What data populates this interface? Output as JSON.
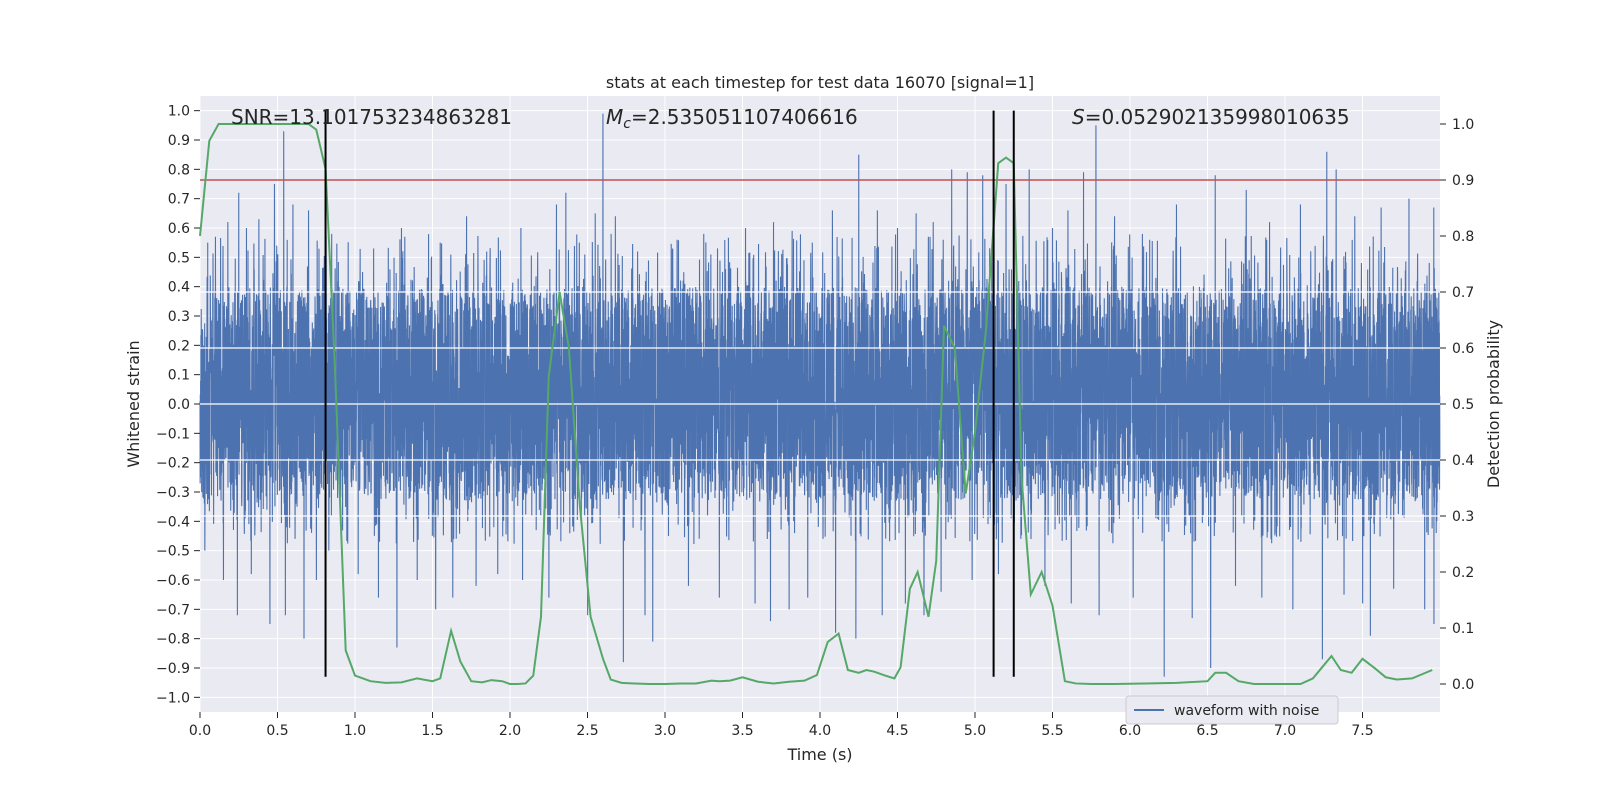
{
  "chart_data": {
    "type": "line",
    "title": "stats at each timestep for test data 16070 [signal=1]",
    "xlabel": "Time (s)",
    "ylabel": "Whitened strain",
    "y2label": "Detection probability",
    "xlim": [
      0.0,
      8.0
    ],
    "ylim": [
      -1.05,
      1.05
    ],
    "y2lim": [
      -0.05,
      1.05
    ],
    "xticks": [
      0.0,
      0.5,
      1.0,
      1.5,
      2.0,
      2.5,
      3.0,
      3.5,
      4.0,
      4.5,
      5.0,
      5.5,
      6.0,
      6.5,
      7.0,
      7.5
    ],
    "xtick_labels": [
      "0.0",
      "0.5",
      "1.0",
      "1.5",
      "2.0",
      "2.5",
      "3.0",
      "3.5",
      "4.0",
      "4.5",
      "5.0",
      "5.5",
      "6.0",
      "6.5",
      "7.0",
      "7.5"
    ],
    "yticks": [
      -1.0,
      -0.9,
      -0.8,
      -0.7,
      -0.6,
      -0.5,
      -0.4,
      -0.3,
      -0.2,
      -0.1,
      0.0,
      0.1,
      0.2,
      0.3,
      0.4,
      0.5,
      0.6,
      0.7,
      0.8,
      0.9,
      1.0
    ],
    "ytick_labels": [
      "−1.0",
      "−0.9",
      "−0.8",
      "−0.7",
      "−0.6",
      "−0.5",
      "−0.4",
      "−0.3",
      "−0.2",
      "−0.1",
      "0.0",
      "0.1",
      "0.2",
      "0.3",
      "0.4",
      "0.5",
      "0.6",
      "0.7",
      "0.8",
      "0.9",
      "1.0"
    ],
    "y2ticks": [
      0.0,
      0.1,
      0.2,
      0.3,
      0.4,
      0.5,
      0.6,
      0.7,
      0.8,
      0.9,
      1.0
    ],
    "y2tick_labels": [
      "0.0",
      "0.1",
      "0.2",
      "0.3",
      "0.4",
      "0.5",
      "0.6",
      "0.7",
      "0.8",
      "0.9",
      "1.0"
    ],
    "y2_gridlines": [
      0.3,
      0.4,
      0.5,
      0.6,
      0.7
    ],
    "annotations": {
      "snr": "SNR=13.101753234863281",
      "mc_symbol": "M",
      "mc_sub": "c",
      "mc_value": "=2.535051107406616",
      "s_symbol": "S",
      "s_value": "=0.052902135998010635"
    },
    "legend": {
      "label": "waveform with noise",
      "loc": "lower-right"
    },
    "threshold": {
      "value": 0.9,
      "axis": "y2",
      "color": "#c44e52"
    },
    "vlines": [
      0.81,
      5.12,
      5.25
    ],
    "vline_range": [
      -0.93,
      1.0
    ],
    "waveform": {
      "name": "waveform with noise",
      "color": "#4c72b0",
      "sample_rate_hz": 1024,
      "duration_s": 8.0,
      "typical_band": [
        -0.33,
        0.4
      ],
      "spikes_pos": [
        [
          0.05,
          0.55
        ],
        [
          0.1,
          0.57
        ],
        [
          0.18,
          0.62
        ],
        [
          0.25,
          0.72
        ],
        [
          0.3,
          0.6
        ],
        [
          0.38,
          0.63
        ],
        [
          0.48,
          0.75
        ],
        [
          0.54,
          0.93
        ],
        [
          0.6,
          0.68
        ],
        [
          0.7,
          0.66
        ],
        [
          0.85,
          0.58
        ],
        [
          1.12,
          0.53
        ],
        [
          1.3,
          0.6
        ],
        [
          1.55,
          0.55
        ],
        [
          1.72,
          0.64
        ],
        [
          1.85,
          0.52
        ],
        [
          2.07,
          0.6
        ],
        [
          2.3,
          0.68
        ],
        [
          2.36,
          0.72
        ],
        [
          2.55,
          0.65
        ],
        [
          2.6,
          0.99
        ],
        [
          2.68,
          0.64
        ],
        [
          3.05,
          0.53
        ],
        [
          3.25,
          0.58
        ],
        [
          3.52,
          0.6
        ],
        [
          3.7,
          0.62
        ],
        [
          3.82,
          0.59
        ],
        [
          3.95,
          0.55
        ],
        [
          4.08,
          0.66
        ],
        [
          4.25,
          0.85
        ],
        [
          4.37,
          0.66
        ],
        [
          4.5,
          0.6
        ],
        [
          4.62,
          0.65
        ],
        [
          4.73,
          0.62
        ],
        [
          4.85,
          0.8
        ],
        [
          4.95,
          0.79
        ],
        [
          5.05,
          0.78
        ],
        [
          5.2,
          0.75
        ],
        [
          5.35,
          0.8
        ],
        [
          5.5,
          0.6
        ],
        [
          5.6,
          0.66
        ],
        [
          5.7,
          0.79
        ],
        [
          5.78,
          0.95
        ],
        [
          5.9,
          0.64
        ],
        [
          6.08,
          0.58
        ],
        [
          6.3,
          0.68
        ],
        [
          6.55,
          0.78
        ],
        [
          6.75,
          0.73
        ],
        [
          6.9,
          0.62
        ],
        [
          7.1,
          0.68
        ],
        [
          7.27,
          0.86
        ],
        [
          7.33,
          0.8
        ],
        [
          7.45,
          0.64
        ],
        [
          7.62,
          0.67
        ],
        [
          7.8,
          0.7
        ],
        [
          7.96,
          0.67
        ]
      ],
      "spikes_neg": [
        [
          0.03,
          -0.5
        ],
        [
          0.15,
          -0.6
        ],
        [
          0.24,
          -0.72
        ],
        [
          0.33,
          -0.58
        ],
        [
          0.45,
          -0.75
        ],
        [
          0.55,
          -0.72
        ],
        [
          0.67,
          -0.8
        ],
        [
          0.75,
          -0.6
        ],
        [
          0.83,
          -0.5
        ],
        [
          1.02,
          -0.58
        ],
        [
          1.15,
          -0.66
        ],
        [
          1.27,
          -0.83
        ],
        [
          1.4,
          -0.6
        ],
        [
          1.52,
          -0.7
        ],
        [
          1.63,
          -0.66
        ],
        [
          1.78,
          -0.62
        ],
        [
          1.92,
          -0.58
        ],
        [
          2.08,
          -0.6
        ],
        [
          2.25,
          -0.66
        ],
        [
          2.5,
          -0.72
        ],
        [
          2.73,
          -0.88
        ],
        [
          2.87,
          -0.72
        ],
        [
          2.92,
          -0.81
        ],
        [
          3.15,
          -0.62
        ],
        [
          3.35,
          -0.66
        ],
        [
          3.58,
          -0.68
        ],
        [
          3.68,
          -0.74
        ],
        [
          3.8,
          -0.7
        ],
        [
          3.92,
          -0.66
        ],
        [
          4.1,
          -0.78
        ],
        [
          4.23,
          -0.8
        ],
        [
          4.4,
          -0.72
        ],
        [
          4.55,
          -0.68
        ],
        [
          4.67,
          -0.72
        ],
        [
          4.78,
          -0.64
        ],
        [
          4.98,
          -0.6
        ],
        [
          5.15,
          -0.58
        ],
        [
          5.45,
          -0.62
        ],
        [
          5.62,
          -0.68
        ],
        [
          5.8,
          -0.72
        ],
        [
          6.02,
          -0.66
        ],
        [
          6.22,
          -0.93
        ],
        [
          6.4,
          -0.73
        ],
        [
          6.52,
          -0.9
        ],
        [
          6.68,
          -0.62
        ],
        [
          6.85,
          -0.66
        ],
        [
          7.05,
          -0.7
        ],
        [
          7.24,
          -0.87
        ],
        [
          7.38,
          -0.65
        ],
        [
          7.5,
          -0.68
        ],
        [
          7.55,
          -0.79
        ],
        [
          7.7,
          -0.63
        ],
        [
          7.9,
          -0.7
        ],
        [
          7.96,
          -0.75
        ]
      ]
    },
    "detection_probability": {
      "name": "detection probability",
      "color": "#55a868",
      "x": [
        0.0,
        0.06,
        0.12,
        0.2,
        0.3,
        0.4,
        0.5,
        0.6,
        0.7,
        0.75,
        0.81,
        0.87,
        0.94,
        1.0,
        1.1,
        1.2,
        1.3,
        1.4,
        1.5,
        1.55,
        1.62,
        1.68,
        1.75,
        1.82,
        1.88,
        1.95,
        2.0,
        2.05,
        2.1,
        2.15,
        2.2,
        2.25,
        2.32,
        2.38,
        2.45,
        2.52,
        2.6,
        2.65,
        2.72,
        2.8,
        2.9,
        3.0,
        3.1,
        3.2,
        3.3,
        3.35,
        3.42,
        3.5,
        3.6,
        3.7,
        3.8,
        3.9,
        3.98,
        4.05,
        4.12,
        4.18,
        4.25,
        4.3,
        4.35,
        4.42,
        4.48,
        4.52,
        4.58,
        4.63,
        4.7,
        4.75,
        4.8,
        4.87,
        4.94,
        5.0,
        5.07,
        5.15,
        5.2,
        5.25,
        5.3,
        5.36,
        5.43,
        5.5,
        5.58,
        5.65,
        5.75,
        5.9,
        6.1,
        6.3,
        6.5,
        6.55,
        6.62,
        6.7,
        6.8,
        7.0,
        7.1,
        7.18,
        7.24,
        7.3,
        7.36,
        7.43,
        7.5,
        7.58,
        7.65,
        7.72,
        7.82,
        7.95
      ],
      "y": [
        0.8,
        0.97,
        1.0,
        1.0,
        1.0,
        1.0,
        1.0,
        1.0,
        1.0,
        0.99,
        0.92,
        0.57,
        0.06,
        0.015,
        0.005,
        0.002,
        0.003,
        0.01,
        0.005,
        0.01,
        0.095,
        0.04,
        0.005,
        0.003,
        0.007,
        0.005,
        0.0,
        0.0,
        0.001,
        0.015,
        0.12,
        0.55,
        0.7,
        0.6,
        0.32,
        0.12,
        0.045,
        0.008,
        0.002,
        0.001,
        0.0,
        0.0,
        0.001,
        0.001,
        0.006,
        0.005,
        0.006,
        0.012,
        0.004,
        0.001,
        0.004,
        0.006,
        0.016,
        0.075,
        0.09,
        0.025,
        0.02,
        0.025,
        0.022,
        0.015,
        0.01,
        0.03,
        0.17,
        0.2,
        0.12,
        0.22,
        0.64,
        0.6,
        0.34,
        0.45,
        0.63,
        0.93,
        0.94,
        0.93,
        0.37,
        0.16,
        0.2,
        0.14,
        0.005,
        0.001,
        0.0,
        0.0,
        0.001,
        0.002,
        0.005,
        0.02,
        0.02,
        0.005,
        0.0,
        0.0,
        0.0,
        0.01,
        0.03,
        0.05,
        0.025,
        0.02,
        0.045,
        0.028,
        0.012,
        0.008,
        0.01,
        0.025
      ]
    }
  }
}
